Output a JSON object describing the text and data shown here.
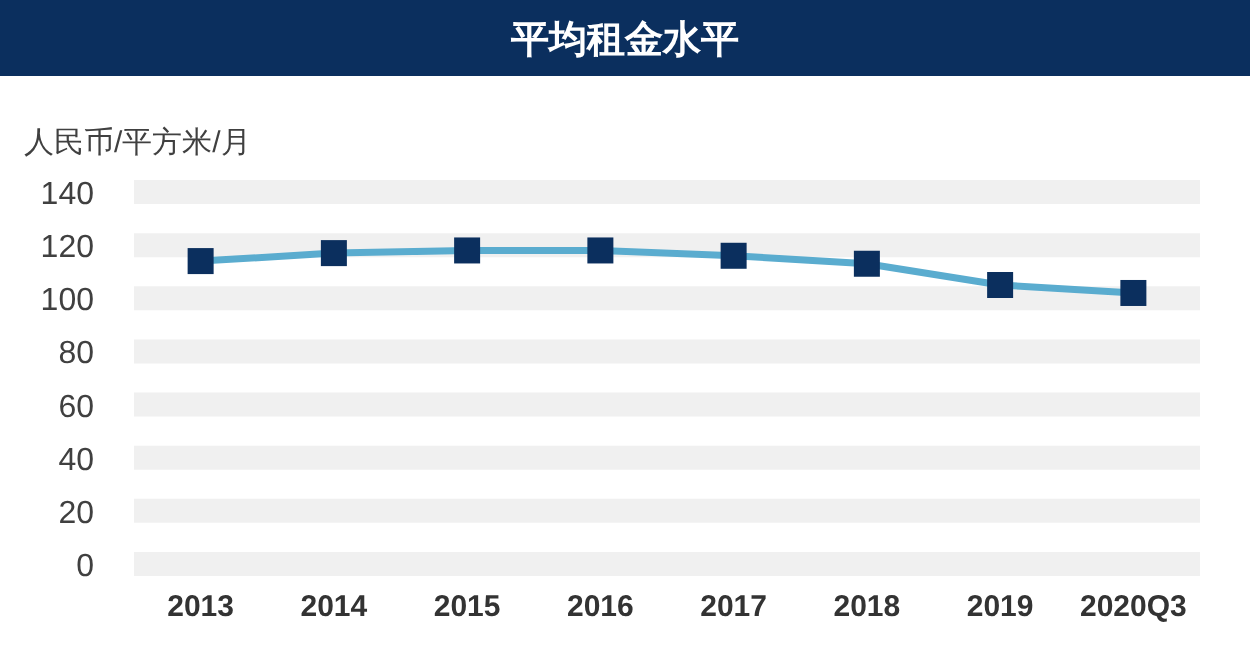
{
  "chart_data": {
    "type": "line",
    "title": "平均租金水平",
    "ylabel": "人民币/平方米/月",
    "categories": [
      "2013",
      "2014",
      "2015",
      "2016",
      "2017",
      "2018",
      "2019",
      "2020Q3"
    ],
    "series": [
      {
        "color": "#5aaccf",
        "values": [
          114,
          117,
          118,
          118,
          116,
          113,
          105,
          102
        ]
      }
    ],
    "marker": "square",
    "line_style": "solid",
    "ylim": [
      0,
      140
    ],
    "yticks": [
      0,
      20,
      40,
      60,
      80,
      100,
      120,
      140
    ],
    "grid": "y"
  }
}
